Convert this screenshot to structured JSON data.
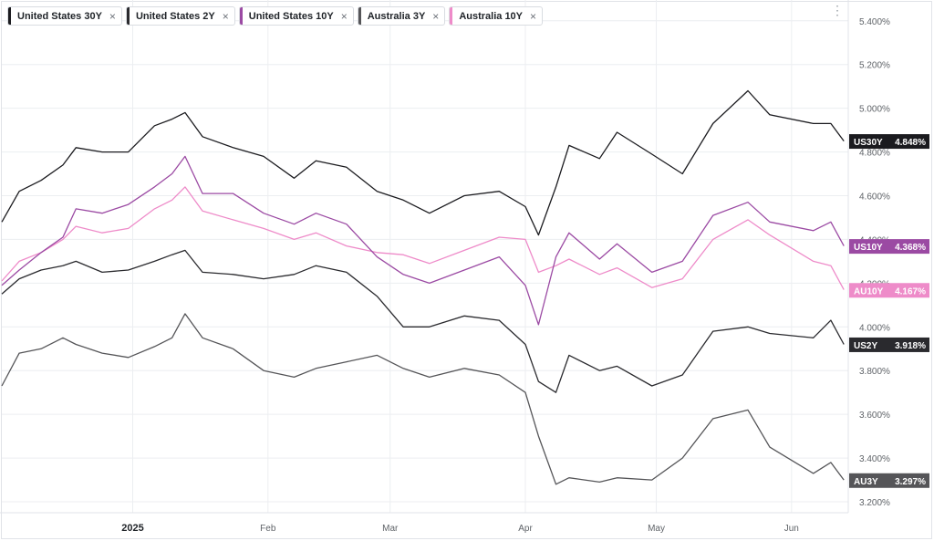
{
  "legend": [
    {
      "label": "United States 30Y",
      "color": "#1b1b1f"
    },
    {
      "label": "United States 2Y",
      "color": "#2a2a2e"
    },
    {
      "label": "United States 10Y",
      "color": "#9b4aa3"
    },
    {
      "label": "Australia 3Y",
      "color": "#555558"
    },
    {
      "label": "Australia 10Y",
      "color": "#ee8bc9"
    }
  ],
  "close_symbol": "×",
  "menu_symbol": "⋮",
  "chart_data": {
    "type": "line",
    "ylim": [
      3.15,
      5.47
    ],
    "y_ticks": [
      "5.400%",
      "5.200%",
      "5.000%",
      "4.800%",
      "4.600%",
      "4.400%",
      "4.200%",
      "4.000%",
      "3.800%",
      "3.600%",
      "3.400%",
      "3.200%"
    ],
    "x_ticks": [
      "2025",
      "Feb",
      "Mar",
      "Apr",
      "May",
      "Jun"
    ],
    "x_tick_dates": [
      "2025-01-01",
      "2025-02-01",
      "2025-03-01",
      "2025-04-01",
      "2025-05-01",
      "2025-06-01"
    ],
    "x_start": "2024-12-02",
    "x_end": "2025-06-14",
    "grid": true,
    "series": [
      {
        "name": "United States 30Y",
        "tag": "US30Y",
        "last": "4.848%",
        "color": "#1b1b1f",
        "x": [
          "2024-12-02",
          "2024-12-06",
          "2024-12-11",
          "2024-12-16",
          "2024-12-19",
          "2024-12-25",
          "2024-12-31",
          "2025-01-06",
          "2025-01-10",
          "2025-01-13",
          "2025-01-17",
          "2025-01-24",
          "2025-01-31",
          "2025-02-07",
          "2025-02-12",
          "2025-02-19",
          "2025-02-26",
          "2025-03-04",
          "2025-03-10",
          "2025-03-18",
          "2025-03-26",
          "2025-04-01",
          "2025-04-04",
          "2025-04-08",
          "2025-04-11",
          "2025-04-18",
          "2025-04-22",
          "2025-04-30",
          "2025-05-07",
          "2025-05-14",
          "2025-05-22",
          "2025-05-27",
          "2025-06-06",
          "2025-06-10",
          "2025-06-13"
        ],
        "values": [
          4.48,
          4.62,
          4.67,
          4.74,
          4.82,
          4.8,
          4.8,
          4.92,
          4.95,
          4.98,
          4.87,
          4.82,
          4.78,
          4.68,
          4.76,
          4.73,
          4.62,
          4.58,
          4.52,
          4.6,
          4.62,
          4.55,
          4.42,
          4.64,
          4.83,
          4.77,
          4.89,
          4.79,
          4.7,
          4.93,
          5.08,
          4.97,
          4.93,
          4.93,
          4.85
        ]
      },
      {
        "name": "United States 2Y",
        "tag": "US2Y",
        "last": "3.918%",
        "color": "#2a2a2e",
        "x": [
          "2024-12-02",
          "2024-12-06",
          "2024-12-11",
          "2024-12-16",
          "2024-12-19",
          "2024-12-25",
          "2024-12-31",
          "2025-01-06",
          "2025-01-10",
          "2025-01-13",
          "2025-01-17",
          "2025-01-24",
          "2025-01-31",
          "2025-02-07",
          "2025-02-12",
          "2025-02-19",
          "2025-02-26",
          "2025-03-04",
          "2025-03-10",
          "2025-03-18",
          "2025-03-26",
          "2025-04-01",
          "2025-04-04",
          "2025-04-08",
          "2025-04-11",
          "2025-04-18",
          "2025-04-22",
          "2025-04-30",
          "2025-05-07",
          "2025-05-14",
          "2025-05-22",
          "2025-05-27",
          "2025-06-06",
          "2025-06-10",
          "2025-06-13"
        ],
        "values": [
          4.15,
          4.22,
          4.26,
          4.28,
          4.3,
          4.25,
          4.26,
          4.3,
          4.33,
          4.35,
          4.25,
          4.24,
          4.22,
          4.24,
          4.28,
          4.25,
          4.14,
          4.0,
          4.0,
          4.05,
          4.03,
          3.92,
          3.75,
          3.7,
          3.87,
          3.8,
          3.82,
          3.73,
          3.78,
          3.98,
          4.0,
          3.97,
          3.95,
          4.03,
          3.92
        ]
      },
      {
        "name": "United States 10Y",
        "tag": "US10Y",
        "last": "4.368%",
        "color": "#9b4aa3",
        "x": [
          "2024-12-02",
          "2024-12-06",
          "2024-12-11",
          "2024-12-16",
          "2024-12-19",
          "2024-12-25",
          "2024-12-31",
          "2025-01-06",
          "2025-01-10",
          "2025-01-13",
          "2025-01-17",
          "2025-01-24",
          "2025-01-31",
          "2025-02-07",
          "2025-02-12",
          "2025-02-19",
          "2025-02-26",
          "2025-03-04",
          "2025-03-10",
          "2025-03-18",
          "2025-03-26",
          "2025-04-01",
          "2025-04-04",
          "2025-04-08",
          "2025-04-11",
          "2025-04-18",
          "2025-04-22",
          "2025-04-30",
          "2025-05-07",
          "2025-05-14",
          "2025-05-22",
          "2025-05-27",
          "2025-06-06",
          "2025-06-10",
          "2025-06-13"
        ],
        "values": [
          4.19,
          4.26,
          4.34,
          4.41,
          4.54,
          4.52,
          4.56,
          4.64,
          4.7,
          4.78,
          4.61,
          4.61,
          4.52,
          4.47,
          4.52,
          4.47,
          4.32,
          4.24,
          4.2,
          4.26,
          4.32,
          4.19,
          4.01,
          4.32,
          4.43,
          4.31,
          4.38,
          4.25,
          4.3,
          4.51,
          4.57,
          4.48,
          4.44,
          4.48,
          4.37
        ]
      },
      {
        "name": "Australia 3Y",
        "tag": "AU3Y",
        "last": "3.297%",
        "color": "#555558",
        "x": [
          "2024-12-02",
          "2024-12-06",
          "2024-12-11",
          "2024-12-16",
          "2024-12-19",
          "2024-12-25",
          "2024-12-31",
          "2025-01-06",
          "2025-01-10",
          "2025-01-13",
          "2025-01-17",
          "2025-01-24",
          "2025-01-31",
          "2025-02-07",
          "2025-02-12",
          "2025-02-19",
          "2025-02-26",
          "2025-03-04",
          "2025-03-10",
          "2025-03-18",
          "2025-03-26",
          "2025-04-01",
          "2025-04-04",
          "2025-04-08",
          "2025-04-11",
          "2025-04-18",
          "2025-04-22",
          "2025-04-30",
          "2025-05-07",
          "2025-05-14",
          "2025-05-22",
          "2025-05-27",
          "2025-06-06",
          "2025-06-10",
          "2025-06-13"
        ],
        "values": [
          3.73,
          3.88,
          3.9,
          3.95,
          3.92,
          3.88,
          3.86,
          3.91,
          3.95,
          4.06,
          3.95,
          3.9,
          3.8,
          3.77,
          3.81,
          3.84,
          3.87,
          3.81,
          3.77,
          3.81,
          3.78,
          3.7,
          3.5,
          3.28,
          3.31,
          3.29,
          3.31,
          3.3,
          3.4,
          3.58,
          3.62,
          3.45,
          3.33,
          3.38,
          3.3
        ]
      },
      {
        "name": "Australia 10Y",
        "tag": "AU10Y",
        "last": "4.167%",
        "color": "#ee8bc9",
        "x": [
          "2024-12-02",
          "2024-12-06",
          "2024-12-11",
          "2024-12-16",
          "2024-12-19",
          "2024-12-25",
          "2024-12-31",
          "2025-01-06",
          "2025-01-10",
          "2025-01-13",
          "2025-01-17",
          "2025-01-24",
          "2025-01-31",
          "2025-02-07",
          "2025-02-12",
          "2025-02-19",
          "2025-02-26",
          "2025-03-04",
          "2025-03-10",
          "2025-03-18",
          "2025-03-26",
          "2025-04-01",
          "2025-04-04",
          "2025-04-08",
          "2025-04-11",
          "2025-04-18",
          "2025-04-22",
          "2025-04-30",
          "2025-05-07",
          "2025-05-14",
          "2025-05-22",
          "2025-05-27",
          "2025-06-06",
          "2025-06-10",
          "2025-06-13"
        ],
        "values": [
          4.21,
          4.3,
          4.34,
          4.4,
          4.46,
          4.43,
          4.45,
          4.54,
          4.58,
          4.64,
          4.53,
          4.49,
          4.45,
          4.4,
          4.43,
          4.37,
          4.34,
          4.33,
          4.29,
          4.35,
          4.41,
          4.4,
          4.25,
          4.28,
          4.31,
          4.24,
          4.27,
          4.18,
          4.22,
          4.4,
          4.49,
          4.42,
          4.3,
          4.28,
          4.17
        ]
      }
    ]
  }
}
